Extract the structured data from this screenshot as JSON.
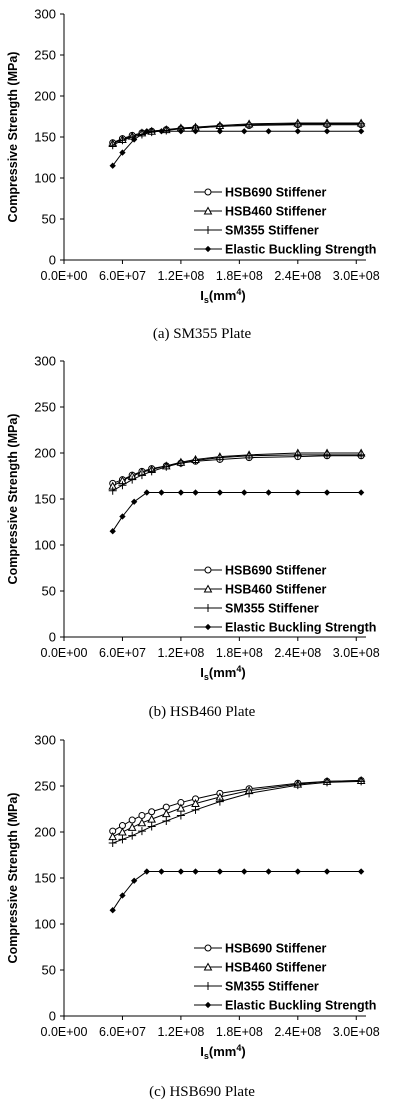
{
  "colors": {
    "axis": "#000000",
    "series": "#000000",
    "background": "#ffffff"
  },
  "chart_data": [
    {
      "type": "line",
      "caption": "(a) SM355 Plate",
      "xlabel": "I",
      "xlabel_sub": "s",
      "xlabel_unit": "(mm",
      "xlabel_sup": "4",
      "xlabel_close": ")",
      "ylabel": "Compressive Strength (MPa)",
      "xlim": [
        0,
        310000000
      ],
      "ylim": [
        0,
        300
      ],
      "xticks": [
        "0.0E+00",
        "6.0E+07",
        "1.2E+08",
        "1.8E+08",
        "2.4E+08",
        "3.0E+08"
      ],
      "yticks": [
        "0",
        "50",
        "100",
        "150",
        "200",
        "250",
        "300"
      ],
      "legend_position": "bottom-right",
      "series": [
        {
          "name": "HSB690 Stiffener",
          "marker": "circle",
          "x": [
            50000000,
            60000000,
            70000000,
            80000000,
            90000000,
            105000000,
            120000000,
            135000000,
            160000000,
            190000000,
            240000000,
            270000000,
            305000000
          ],
          "y": [
            143,
            148,
            152,
            155,
            157,
            159,
            160,
            161,
            163,
            164,
            165,
            165,
            165
          ]
        },
        {
          "name": "HSB460 Stiffener",
          "marker": "triangle",
          "x": [
            50000000,
            60000000,
            70000000,
            80000000,
            90000000,
            105000000,
            120000000,
            135000000,
            160000000,
            190000000,
            240000000,
            270000000,
            305000000
          ],
          "y": [
            142,
            147,
            151,
            155,
            157,
            159,
            161,
            162,
            164,
            166,
            167,
            167,
            167
          ]
        },
        {
          "name": "SM355 Stiffener",
          "marker": "plus",
          "x": [
            50000000,
            60000000,
            70000000,
            80000000,
            90000000,
            105000000,
            120000000,
            135000000,
            160000000,
            190000000,
            240000000,
            270000000,
            305000000
          ],
          "y": [
            140,
            146,
            150,
            153,
            156,
            158,
            160,
            161,
            163,
            165,
            166,
            166,
            166
          ]
        },
        {
          "name": "Elastic Buckling Strength",
          "marker": "diamond",
          "x": [
            50000000,
            60000000,
            72000000,
            85000000,
            100000000,
            120000000,
            135000000,
            160000000,
            185000000,
            210000000,
            240000000,
            270000000,
            305000000
          ],
          "y": [
            115,
            131,
            147,
            157,
            157,
            157,
            157,
            157,
            157,
            157,
            157,
            157,
            157
          ]
        }
      ]
    },
    {
      "type": "line",
      "caption": "(b) HSB460 Plate",
      "xlabel": "I",
      "xlabel_sub": "s",
      "xlabel_unit": "(mm",
      "xlabel_sup": "4",
      "xlabel_close": ")",
      "ylabel": "Compressive Strength (MPa)",
      "xlim": [
        0,
        310000000
      ],
      "ylim": [
        0,
        300
      ],
      "xticks": [
        "0.0E+00",
        "6.0E+07",
        "1.2E+08",
        "1.8E+08",
        "2.4E+08",
        "3.0E+08"
      ],
      "yticks": [
        "0",
        "50",
        "100",
        "150",
        "200",
        "250",
        "300"
      ],
      "legend_position": "bottom-right",
      "series": [
        {
          "name": "HSB690 Stiffener",
          "marker": "circle",
          "x": [
            50000000,
            60000000,
            70000000,
            80000000,
            90000000,
            105000000,
            120000000,
            135000000,
            160000000,
            190000000,
            240000000,
            270000000,
            305000000
          ],
          "y": [
            167,
            171,
            176,
            180,
            183,
            186,
            189,
            191,
            193,
            195,
            196,
            197,
            197
          ]
        },
        {
          "name": "HSB460 Stiffener",
          "marker": "triangle",
          "x": [
            50000000,
            60000000,
            70000000,
            80000000,
            90000000,
            105000000,
            120000000,
            135000000,
            160000000,
            190000000,
            240000000,
            270000000,
            305000000
          ],
          "y": [
            164,
            170,
            175,
            179,
            182,
            186,
            190,
            193,
            196,
            198,
            200,
            200,
            200
          ]
        },
        {
          "name": "SM355 Stiffener",
          "marker": "plus",
          "x": [
            50000000,
            60000000,
            70000000,
            80000000,
            90000000,
            105000000,
            120000000,
            135000000,
            160000000,
            190000000,
            240000000,
            270000000,
            305000000
          ],
          "y": [
            159,
            165,
            171,
            176,
            180,
            185,
            189,
            192,
            195,
            197,
            198,
            198,
            198
          ]
        },
        {
          "name": "Elastic Buckling Strength",
          "marker": "diamond",
          "x": [
            50000000,
            60000000,
            72000000,
            85000000,
            100000000,
            120000000,
            135000000,
            160000000,
            185000000,
            210000000,
            240000000,
            270000000,
            305000000
          ],
          "y": [
            115,
            131,
            147,
            157,
            157,
            157,
            157,
            157,
            157,
            157,
            157,
            157,
            157
          ]
        }
      ]
    },
    {
      "type": "line",
      "caption": "(c) HSB690 Plate",
      "xlabel": "I",
      "xlabel_sub": "s",
      "xlabel_unit": "(mm",
      "xlabel_sup": "4",
      "xlabel_close": ")",
      "ylabel": "Compressive Strength (MPa)",
      "xlim": [
        0,
        310000000
      ],
      "ylim": [
        0,
        300
      ],
      "xticks": [
        "0.0E+00",
        "6.0E+07",
        "1.2E+08",
        "1.8E+08",
        "2.4E+08",
        "3.0E+08"
      ],
      "yticks": [
        "0",
        "50",
        "100",
        "150",
        "200",
        "250",
        "300"
      ],
      "legend_position": "bottom-right",
      "series": [
        {
          "name": "HSB690 Stiffener",
          "marker": "circle",
          "x": [
            50000000,
            60000000,
            70000000,
            80000000,
            90000000,
            105000000,
            120000000,
            135000000,
            160000000,
            190000000,
            240000000,
            270000000,
            305000000
          ],
          "y": [
            201,
            207,
            213,
            218,
            222,
            227,
            232,
            236,
            242,
            247,
            253,
            255,
            256
          ]
        },
        {
          "name": "HSB460 Stiffener",
          "marker": "triangle",
          "x": [
            50000000,
            60000000,
            70000000,
            80000000,
            90000000,
            105000000,
            120000000,
            135000000,
            160000000,
            190000000,
            240000000,
            270000000,
            305000000
          ],
          "y": [
            195,
            200,
            205,
            210,
            214,
            220,
            226,
            231,
            238,
            245,
            252,
            255,
            256
          ]
        },
        {
          "name": "SM355 Stiffener",
          "marker": "plus",
          "x": [
            50000000,
            60000000,
            70000000,
            80000000,
            90000000,
            105000000,
            120000000,
            135000000,
            160000000,
            190000000,
            240000000,
            270000000,
            305000000
          ],
          "y": [
            188,
            192,
            196,
            201,
            206,
            212,
            218,
            224,
            233,
            242,
            251,
            254,
            255
          ]
        },
        {
          "name": "Elastic Buckling Strength",
          "marker": "diamond",
          "x": [
            50000000,
            60000000,
            72000000,
            85000000,
            100000000,
            120000000,
            135000000,
            160000000,
            185000000,
            210000000,
            240000000,
            270000000,
            305000000
          ],
          "y": [
            115,
            131,
            147,
            157,
            157,
            157,
            157,
            157,
            157,
            157,
            157,
            157,
            157
          ]
        }
      ]
    }
  ]
}
